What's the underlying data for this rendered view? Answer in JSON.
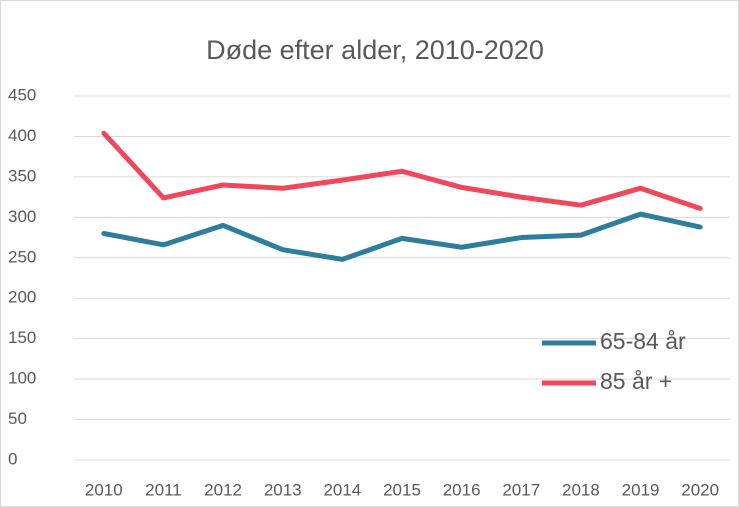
{
  "chart_data": {
    "type": "line",
    "title": "Døde efter alder, 2010-2020",
    "categories": [
      "2010",
      "2011",
      "2012",
      "2013",
      "2014",
      "2015",
      "2016",
      "2017",
      "2018",
      "2019",
      "2020"
    ],
    "series": [
      {
        "name": "65-84 år",
        "color": "#2e7d9c",
        "values": [
          280,
          266,
          290,
          260,
          248,
          274,
          263,
          275,
          278,
          304,
          288
        ]
      },
      {
        "name": "85 år +",
        "color": "#f0485a",
        "values": [
          404,
          324,
          340,
          336,
          346,
          357,
          337,
          325,
          315,
          336,
          311
        ]
      }
    ],
    "ylim": [
      0,
      450
    ],
    "yticks": [
      0,
      50,
      100,
      150,
      200,
      250,
      300,
      350,
      400,
      450
    ],
    "grid": true,
    "legend": "right"
  }
}
